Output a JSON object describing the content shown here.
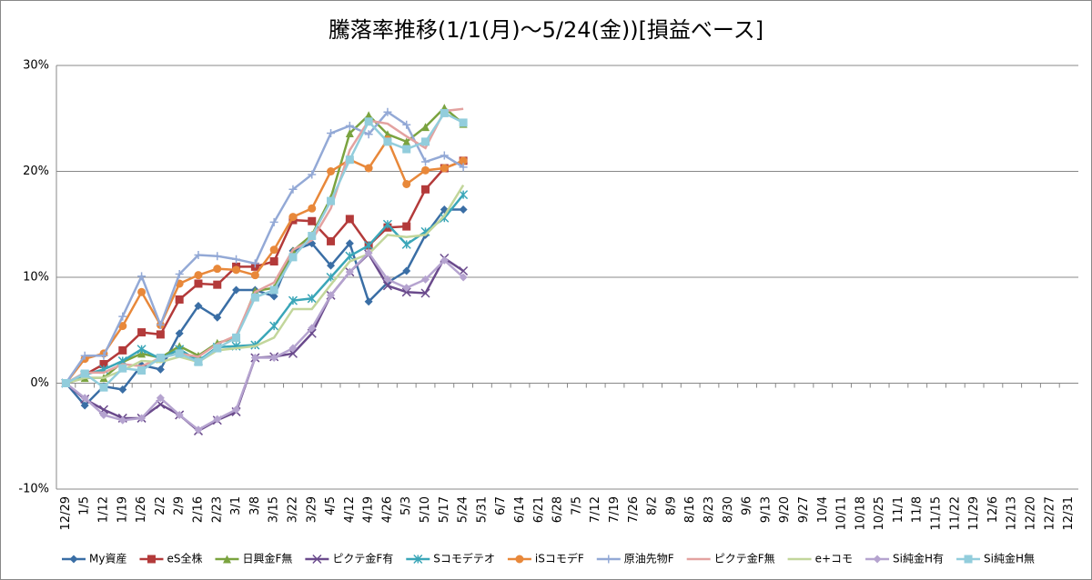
{
  "chart_data": {
    "type": "line",
    "title": "騰落率推移(1/1(月)～5/24(金))[損益ベース]",
    "categories": [
      "12/29",
      "1/5",
      "1/12",
      "1/19",
      "1/26",
      "2/2",
      "2/9",
      "2/16",
      "2/23",
      "3/1",
      "3/8",
      "3/15",
      "3/22",
      "3/29",
      "4/5",
      "4/12",
      "4/19",
      "4/26",
      "5/3",
      "5/10",
      "5/17",
      "5/24",
      "5/31",
      "6/7",
      "6/14",
      "6/21",
      "6/28",
      "7/5",
      "7/12",
      "7/19",
      "7/26",
      "8/2",
      "8/9",
      "8/16",
      "8/23",
      "8/30",
      "9/6",
      "9/13",
      "9/20",
      "9/27",
      "10/4",
      "10/11",
      "10/18",
      "10/25",
      "11/1",
      "11/8",
      "11/15",
      "11/22",
      "11/29",
      "12/6",
      "12/13",
      "12/20",
      "12/27",
      "12/31"
    ],
    "ylim": [
      -10,
      30
    ],
    "yticks": [
      {
        "value": -10,
        "label": "-10%"
      },
      {
        "value": 0,
        "label": "0%"
      },
      {
        "value": 10,
        "label": "10%"
      },
      {
        "value": 20,
        "label": "20%"
      },
      {
        "value": 30,
        "label": "30%"
      }
    ],
    "grid": true,
    "legend": "bottom",
    "series": [
      {
        "name": "My資産",
        "color": "#3a6ea5",
        "marker": "diamond",
        "values": [
          0,
          -2.1,
          -0.3,
          -0.6,
          1.7,
          1.3,
          4.7,
          7.3,
          6.2,
          8.8,
          8.8,
          8.2,
          12.5,
          13.2,
          11.1,
          13.2,
          7.7,
          9.5,
          10.6,
          14.0,
          16.4,
          16.4,
          null,
          null,
          null,
          null,
          null,
          null,
          null,
          null,
          null,
          null,
          null,
          null,
          null,
          null,
          null,
          null,
          null,
          null,
          null,
          null,
          null,
          null,
          null,
          null,
          null,
          null,
          null,
          null,
          null,
          null,
          null,
          null
        ]
      },
      {
        "name": "eS全株",
        "color": "#b33a3a",
        "marker": "square",
        "values": [
          0,
          0.8,
          1.8,
          3.1,
          4.8,
          4.6,
          7.9,
          9.4,
          9.3,
          11.0,
          11.0,
          11.5,
          15.4,
          15.3,
          13.4,
          15.5,
          13.0,
          14.7,
          14.8,
          18.3,
          20.3,
          21.0,
          null,
          null,
          null,
          null,
          null,
          null,
          null,
          null,
          null,
          null,
          null,
          null,
          null,
          null,
          null,
          null,
          null,
          null,
          null,
          null,
          null,
          null,
          null,
          null,
          null,
          null,
          null,
          null,
          null,
          null,
          null,
          null
        ]
      },
      {
        "name": "日興金F無",
        "color": "#7aa33f",
        "marker": "triangle",
        "values": [
          0,
          0.5,
          0.5,
          2.0,
          2.8,
          2.4,
          3.5,
          2.6,
          3.8,
          4.3,
          8.7,
          9.0,
          12.5,
          14.0,
          17.5,
          23.6,
          25.3,
          23.5,
          22.8,
          24.2,
          26.0,
          24.5,
          null,
          null,
          null,
          null,
          null,
          null,
          null,
          null,
          null,
          null,
          null,
          null,
          null,
          null,
          null,
          null,
          null,
          null,
          null,
          null,
          null,
          null,
          null,
          null,
          null,
          null,
          null,
          null,
          null,
          null,
          null,
          null
        ]
      },
      {
        "name": "ピクテ金F有",
        "color": "#6a4a8c",
        "marker": "x",
        "values": [
          0,
          -1.5,
          -2.5,
          -3.3,
          -3.3,
          -2.0,
          -3.0,
          -4.5,
          -3.5,
          -2.7,
          2.4,
          2.5,
          2.8,
          4.7,
          8.3,
          10.5,
          12.2,
          9.2,
          8.6,
          8.5,
          11.8,
          10.6,
          null,
          null,
          null,
          null,
          null,
          null,
          null,
          null,
          null,
          null,
          null,
          null,
          null,
          null,
          null,
          null,
          null,
          null,
          null,
          null,
          null,
          null,
          null,
          null,
          null,
          null,
          null,
          null,
          null,
          null,
          null,
          null
        ]
      },
      {
        "name": "Sコモデテオ",
        "color": "#3aa6b8",
        "marker": "star",
        "values": [
          0,
          0.8,
          1.3,
          2.1,
          3.2,
          2.3,
          3.2,
          2.1,
          3.4,
          3.5,
          3.6,
          5.4,
          7.8,
          8.0,
          10.0,
          12.0,
          13.0,
          15.0,
          13.1,
          14.3,
          15.6,
          17.8,
          null,
          null,
          null,
          null,
          null,
          null,
          null,
          null,
          null,
          null,
          null,
          null,
          null,
          null,
          null,
          null,
          null,
          null,
          null,
          null,
          null,
          null,
          null,
          null,
          null,
          null,
          null,
          null,
          null,
          null,
          null,
          null
        ]
      },
      {
        "name": "iSコモデF",
        "color": "#e8883a",
        "marker": "circle",
        "values": [
          0,
          2.3,
          2.8,
          5.4,
          8.6,
          5.5,
          9.4,
          10.2,
          10.8,
          10.7,
          10.2,
          12.6,
          15.7,
          16.5,
          20.0,
          21.1,
          20.3,
          23.0,
          18.8,
          20.1,
          20.3,
          21.0,
          null,
          null,
          null,
          null,
          null,
          null,
          null,
          null,
          null,
          null,
          null,
          null,
          null,
          null,
          null,
          null,
          null,
          null,
          null,
          null,
          null,
          null,
          null,
          null,
          null,
          null,
          null,
          null,
          null,
          null,
          null,
          null
        ]
      },
      {
        "name": "原油先物F",
        "color": "#93a9d6",
        "marker": "plus",
        "values": [
          0,
          2.6,
          2.6,
          6.3,
          10.1,
          5.5,
          10.3,
          12.1,
          12.0,
          11.7,
          11.3,
          15.2,
          18.3,
          19.7,
          23.6,
          24.3,
          23.5,
          25.6,
          24.4,
          20.9,
          21.5,
          20.4,
          null,
          null,
          null,
          null,
          null,
          null,
          null,
          null,
          null,
          null,
          null,
          null,
          null,
          null,
          null,
          null,
          null,
          null,
          null,
          null,
          null,
          null,
          null,
          null,
          null,
          null,
          null,
          null,
          null,
          null,
          null,
          null
        ]
      },
      {
        "name": "ピクテ金F無",
        "color": "#e3a2a0",
        "marker": "none",
        "values": [
          0,
          1.0,
          1.0,
          1.8,
          1.6,
          2.4,
          2.8,
          2.5,
          3.7,
          4.5,
          8.6,
          9.5,
          12.6,
          13.5,
          16.5,
          22.0,
          24.8,
          24.5,
          23.3,
          22.2,
          25.7,
          25.9,
          null,
          null,
          null,
          null,
          null,
          null,
          null,
          null,
          null,
          null,
          null,
          null,
          null,
          null,
          null,
          null,
          null,
          null,
          null,
          null,
          null,
          null,
          null,
          null,
          null,
          null,
          null,
          null,
          null,
          null,
          null,
          null
        ]
      },
      {
        "name": "e+コモ",
        "color": "#c2d69b",
        "marker": "none",
        "values": [
          0,
          0.5,
          0.5,
          1.2,
          2.1,
          2.0,
          2.5,
          2.0,
          3.1,
          3.3,
          3.5,
          4.3,
          7.0,
          7.0,
          9.3,
          11.5,
          12.2,
          14.0,
          13.8,
          14.0,
          15.8,
          18.7,
          null,
          null,
          null,
          null,
          null,
          null,
          null,
          null,
          null,
          null,
          null,
          null,
          null,
          null,
          null,
          null,
          null,
          null,
          null,
          null,
          null,
          null,
          null,
          null,
          null,
          null,
          null,
          null,
          null,
          null,
          null,
          null
        ]
      },
      {
        "name": "Si純金H有",
        "color": "#b5a3cf",
        "marker": "diamond",
        "values": [
          0,
          -1.4,
          -3.0,
          -3.5,
          -3.3,
          -1.4,
          -3.0,
          -4.4,
          -3.4,
          -2.5,
          2.4,
          2.4,
          3.3,
          5.2,
          8.3,
          10.5,
          12.3,
          9.8,
          9.0,
          9.8,
          11.6,
          10.0,
          null,
          null,
          null,
          null,
          null,
          null,
          null,
          null,
          null,
          null,
          null,
          null,
          null,
          null,
          null,
          null,
          null,
          null,
          null,
          null,
          null,
          null,
          null,
          null,
          null,
          null,
          null,
          null,
          null,
          null,
          null,
          null
        ]
      },
      {
        "name": "Si純金H無",
        "color": "#92cddc",
        "marker": "square",
        "values": [
          0,
          0.9,
          -0.4,
          1.4,
          1.2,
          2.4,
          2.8,
          2.0,
          3.3,
          4.3,
          8.1,
          8.8,
          11.9,
          13.9,
          17.2,
          21.1,
          24.7,
          22.8,
          22.1,
          22.8,
          25.5,
          24.6,
          null,
          null,
          null,
          null,
          null,
          null,
          null,
          null,
          null,
          null,
          null,
          null,
          null,
          null,
          null,
          null,
          null,
          null,
          null,
          null,
          null,
          null,
          null,
          null,
          null,
          null,
          null,
          null,
          null,
          null,
          null,
          null
        ]
      }
    ]
  }
}
